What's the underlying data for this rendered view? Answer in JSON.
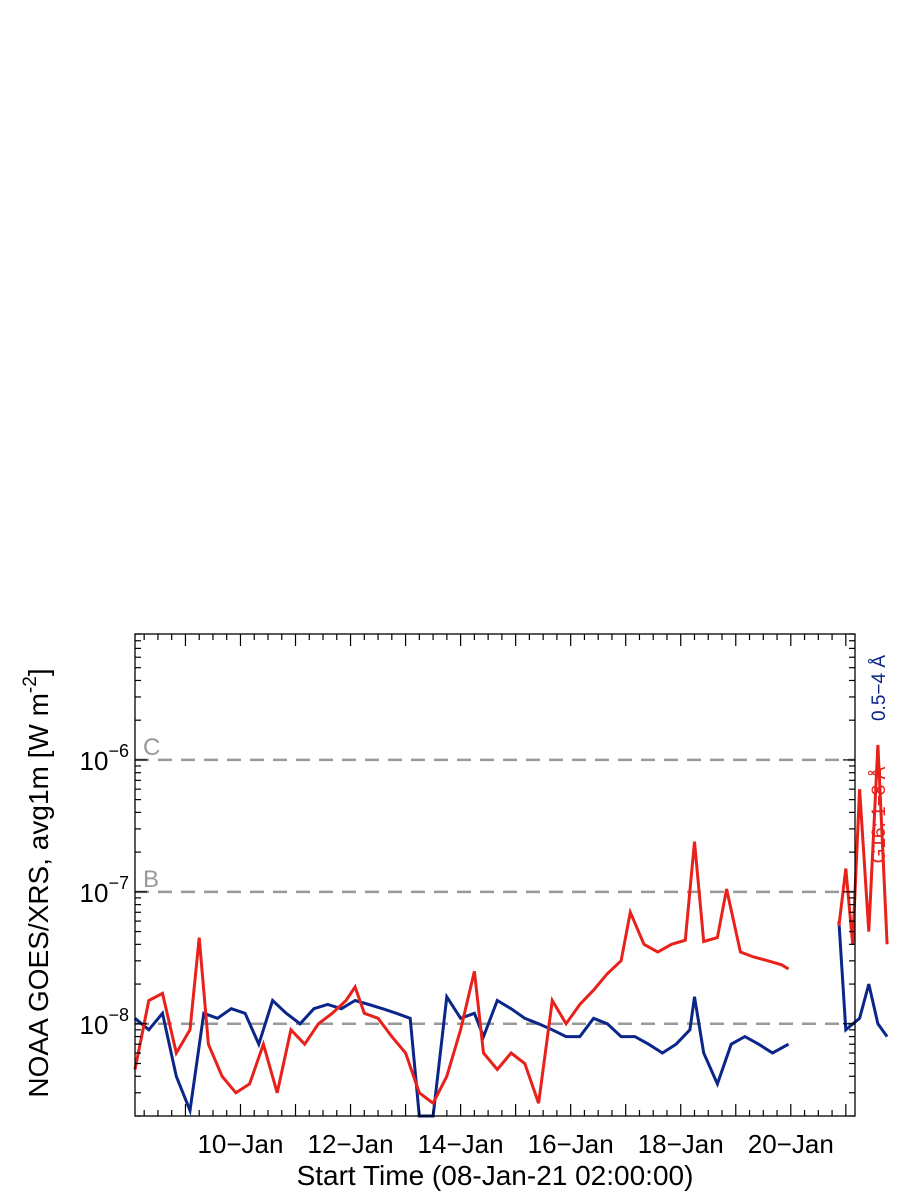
{
  "chart_data": {
    "type": "line",
    "xlabel": "Start Time (08-Jan-21 02:00:00)",
    "ylabel": "NOAA GOES/XRS, avg1m [W m",
    "ylabel_sup": "-2",
    "ylabel_tail": "]",
    "yscale": "log",
    "ylim": [
      2e-09,
      9e-06
    ],
    "xlim": [
      "2021-01-08 02:00",
      "2021-01-21 04:00"
    ],
    "x_ticks": [
      {
        "date": "2021-01-10",
        "label": "10−Jan"
      },
      {
        "date": "2021-01-12",
        "label": "12−Jan"
      },
      {
        "date": "2021-01-14",
        "label": "14−Jan"
      },
      {
        "date": "2021-01-16",
        "label": "16−Jan"
      },
      {
        "date": "2021-01-18",
        "label": "18−Jan"
      },
      {
        "date": "2021-01-20",
        "label": "20−Jan"
      }
    ],
    "y_ticks": [
      {
        "value": 1e-08,
        "base": "10",
        "exp": "−8"
      },
      {
        "value": 1e-07,
        "base": "10",
        "exp": "−7"
      },
      {
        "value": 1e-06,
        "base": "10",
        "exp": "−6"
      }
    ],
    "flare_levels": [
      {
        "label": "C",
        "value": 1e-06
      },
      {
        "label": "B",
        "value": 1e-07
      }
    ],
    "legend_placement": "right-outside",
    "colors": {
      "long": "#e8211b",
      "short": "#0a2689",
      "reference": "#999999"
    },
    "series": [
      {
        "name": "G16: 1−8 Å",
        "color": "#e8211b",
        "points": [
          [
            "2021-01-08 02:00",
            4.5e-09
          ],
          [
            "2021-01-08 08:00",
            1.5e-08
          ],
          [
            "2021-01-08 14:00",
            1.7e-08
          ],
          [
            "2021-01-08 20:00",
            6e-09
          ],
          [
            "2021-01-09 02:00",
            9e-09
          ],
          [
            "2021-01-09 06:00",
            4.5e-08
          ],
          [
            "2021-01-09 10:00",
            7e-09
          ],
          [
            "2021-01-09 16:00",
            4e-09
          ],
          [
            "2021-01-09 22:00",
            3e-09
          ],
          [
            "2021-01-10 04:00",
            3.5e-09
          ],
          [
            "2021-01-10 10:00",
            7e-09
          ],
          [
            "2021-01-10 16:00",
            3e-09
          ],
          [
            "2021-01-10 22:00",
            9e-09
          ],
          [
            "2021-01-11 04:00",
            7e-09
          ],
          [
            "2021-01-11 10:00",
            1e-08
          ],
          [
            "2021-01-11 16:00",
            1.2e-08
          ],
          [
            "2021-01-11 22:00",
            1.5e-08
          ],
          [
            "2021-01-12 02:00",
            1.9e-08
          ],
          [
            "2021-01-12 06:00",
            1.2e-08
          ],
          [
            "2021-01-12 12:00",
            1.1e-08
          ],
          [
            "2021-01-12 18:00",
            8e-09
          ],
          [
            "2021-01-13 00:00",
            6e-09
          ],
          [
            "2021-01-13 06:00",
            3e-09
          ],
          [
            "2021-01-13 12:00",
            2.5e-09
          ],
          [
            "2021-01-13 18:00",
            4e-09
          ],
          [
            "2021-01-14 00:00",
            9e-09
          ],
          [
            "2021-01-14 06:00",
            2.5e-08
          ],
          [
            "2021-01-14 10:00",
            6e-09
          ],
          [
            "2021-01-14 16:00",
            4.5e-09
          ],
          [
            "2021-01-14 22:00",
            6e-09
          ],
          [
            "2021-01-15 04:00",
            5e-09
          ],
          [
            "2021-01-15 10:00",
            2.5e-09
          ],
          [
            "2021-01-15 16:00",
            1.5e-08
          ],
          [
            "2021-01-15 22:00",
            1e-08
          ],
          [
            "2021-01-16 04:00",
            1.4e-08
          ],
          [
            "2021-01-16 10:00",
            1.8e-08
          ],
          [
            "2021-01-16 16:00",
            2.4e-08
          ],
          [
            "2021-01-16 22:00",
            3e-08
          ],
          [
            "2021-01-17 02:00",
            7e-08
          ],
          [
            "2021-01-17 08:00",
            4e-08
          ],
          [
            "2021-01-17 14:00",
            3.5e-08
          ],
          [
            "2021-01-17 20:00",
            4e-08
          ],
          [
            "2021-01-18 02:00",
            4.3e-08
          ],
          [
            "2021-01-18 06:00",
            2.4e-07
          ],
          [
            "2021-01-18 10:00",
            4.2e-08
          ],
          [
            "2021-01-18 16:00",
            4.5e-08
          ],
          [
            "2021-01-18 20:00",
            1.05e-07
          ],
          [
            "2021-01-19 02:00",
            3.5e-08
          ],
          [
            "2021-01-19 08:00",
            3.2e-08
          ],
          [
            "2021-01-19 14:00",
            3e-08
          ],
          [
            "2021-01-19 20:00",
            2.8e-08
          ],
          [
            "2021-01-19 23:00",
            2.6e-08
          ],
          [
            "2021-01-20 21:00",
            5.5e-08
          ],
          [
            "2021-01-21 00:00",
            1.5e-07
          ],
          [
            "2021-01-21 03:00",
            4e-08
          ],
          [
            "2021-01-21 06:00",
            6e-07
          ],
          [
            "2021-01-21 10:00",
            5e-08
          ],
          [
            "2021-01-21 14:00",
            1.3e-06
          ],
          [
            "2021-01-21 18:00",
            4e-08
          ]
        ]
      },
      {
        "name": "0.5−4 Å",
        "color": "#0a2689",
        "points": [
          [
            "2021-01-08 02:00",
            1.1e-08
          ],
          [
            "2021-01-08 08:00",
            9e-09
          ],
          [
            "2021-01-08 14:00",
            1.2e-08
          ],
          [
            "2021-01-08 20:00",
            4e-09
          ],
          [
            "2021-01-09 02:00",
            2.2e-09
          ],
          [
            "2021-01-09 08:00",
            1.2e-08
          ],
          [
            "2021-01-09 14:00",
            1.1e-08
          ],
          [
            "2021-01-09 20:00",
            1.3e-08
          ],
          [
            "2021-01-10 02:00",
            1.2e-08
          ],
          [
            "2021-01-10 08:00",
            7e-09
          ],
          [
            "2021-01-10 14:00",
            1.5e-08
          ],
          [
            "2021-01-10 20:00",
            1.2e-08
          ],
          [
            "2021-01-11 02:00",
            1e-08
          ],
          [
            "2021-01-11 08:00",
            1.3e-08
          ],
          [
            "2021-01-11 14:00",
            1.4e-08
          ],
          [
            "2021-01-11 20:00",
            1.3e-08
          ],
          [
            "2021-01-12 02:00",
            1.5e-08
          ],
          [
            "2021-01-12 08:00",
            1.4e-08
          ],
          [
            "2021-01-12 14:00",
            1.3e-08
          ],
          [
            "2021-01-12 20:00",
            1.2e-08
          ],
          [
            "2021-01-13 02:00",
            1.1e-08
          ],
          [
            "2021-01-13 06:00",
            2e-09
          ],
          [
            "2021-01-13 12:00",
            2e-09
          ],
          [
            "2021-01-13 18:00",
            1.6e-08
          ],
          [
            "2021-01-14 00:00",
            1.1e-08
          ],
          [
            "2021-01-14 06:00",
            1.2e-08
          ],
          [
            "2021-01-14 10:00",
            8e-09
          ],
          [
            "2021-01-14 16:00",
            1.5e-08
          ],
          [
            "2021-01-14 22:00",
            1.3e-08
          ],
          [
            "2021-01-15 04:00",
            1.1e-08
          ],
          [
            "2021-01-15 10:00",
            1e-08
          ],
          [
            "2021-01-15 16:00",
            9e-09
          ],
          [
            "2021-01-15 22:00",
            8e-09
          ],
          [
            "2021-01-16 04:00",
            8e-09
          ],
          [
            "2021-01-16 10:00",
            1.1e-08
          ],
          [
            "2021-01-16 16:00",
            1e-08
          ],
          [
            "2021-01-16 22:00",
            8e-09
          ],
          [
            "2021-01-17 04:00",
            8e-09
          ],
          [
            "2021-01-17 10:00",
            7e-09
          ],
          [
            "2021-01-17 16:00",
            6e-09
          ],
          [
            "2021-01-17 22:00",
            7e-09
          ],
          [
            "2021-01-18 04:00",
            9e-09
          ],
          [
            "2021-01-18 06:00",
            1.6e-08
          ],
          [
            "2021-01-18 10:00",
            6e-09
          ],
          [
            "2021-01-18 16:00",
            3.5e-09
          ],
          [
            "2021-01-18 22:00",
            7e-09
          ],
          [
            "2021-01-19 04:00",
            8e-09
          ],
          [
            "2021-01-19 10:00",
            7e-09
          ],
          [
            "2021-01-19 16:00",
            6e-09
          ],
          [
            "2021-01-19 23:00",
            7e-09
          ],
          [
            "2021-01-20 21:00",
            6e-08
          ],
          [
            "2021-01-21 00:00",
            9e-09
          ],
          [
            "2021-01-21 06:00",
            1.1e-08
          ],
          [
            "2021-01-21 10:00",
            2e-08
          ],
          [
            "2021-01-21 14:00",
            1e-08
          ],
          [
            "2021-01-21 18:00",
            8e-09
          ]
        ]
      }
    ]
  }
}
